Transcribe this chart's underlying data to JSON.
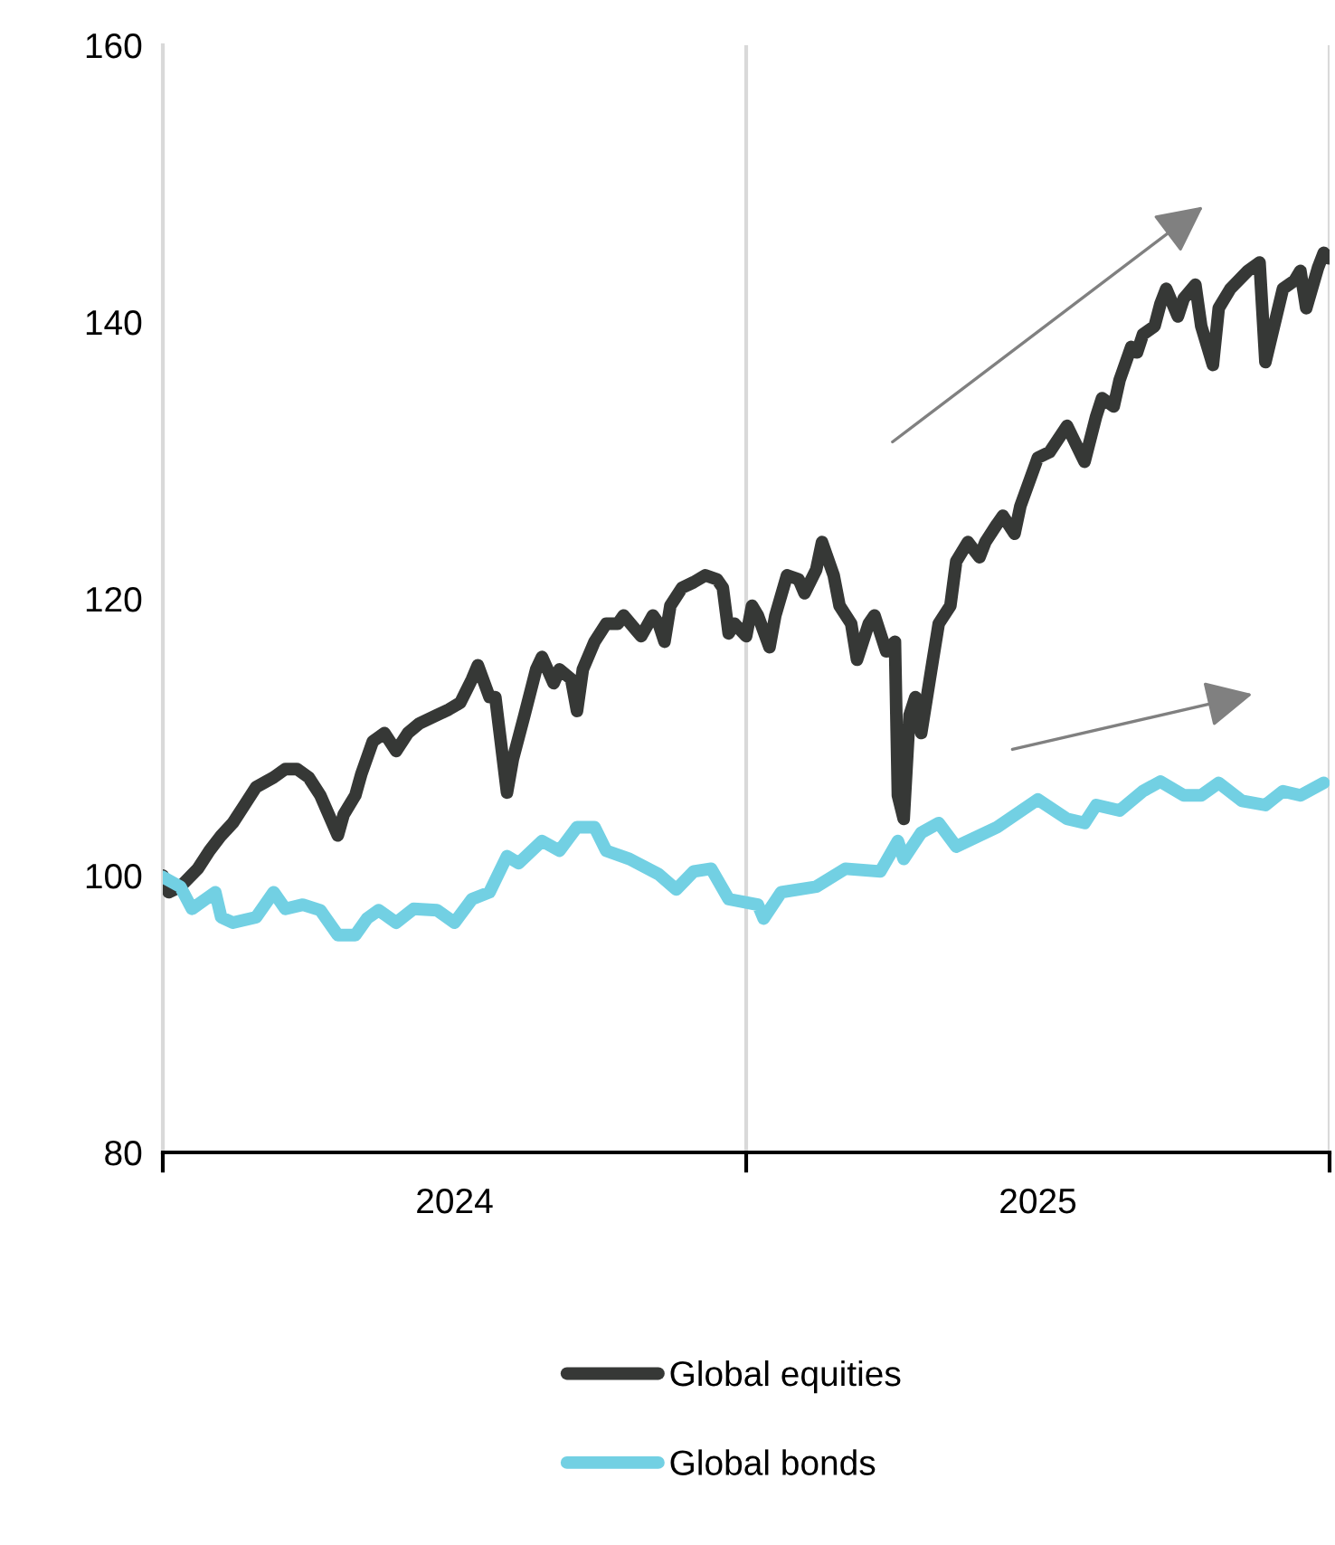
{
  "chart_data": {
    "type": "line",
    "xlim": [
      2024,
      2026
    ],
    "xticks": [
      {
        "value": 2024,
        "label": null
      },
      {
        "value": 2024.5,
        "label": "2024"
      },
      {
        "value": 2025,
        "label": null
      },
      {
        "value": 2025.5,
        "label": "2025"
      },
      {
        "value": 2026,
        "label": null
      }
    ],
    "ylim": [
      80,
      160
    ],
    "yticks": [
      80,
      100,
      120,
      140,
      160
    ],
    "grid": "x",
    "legend": "bottom",
    "marker": "none",
    "line_style": "solid",
    "series": [
      {
        "name": "Global equities",
        "color": "#363836",
        "x": [
          2024.0,
          2024.01,
          2024.03,
          2024.06,
          2024.08,
          2024.1,
          2024.12,
          2024.14,
          2024.16,
          2024.19,
          2024.21,
          2024.23,
          2024.25,
          2024.27,
          2024.3,
          2024.31,
          2024.33,
          2024.34,
          2024.36,
          2024.38,
          2024.4,
          2024.42,
          2024.44,
          2024.47,
          2024.49,
          2024.51,
          2024.53,
          2024.54,
          2024.56,
          2024.57,
          2024.59,
          2024.6,
          2024.62,
          2024.64,
          2024.65,
          2024.67,
          2024.68,
          2024.7,
          2024.71,
          2024.72,
          2024.74,
          2024.76,
          2024.78,
          2024.79,
          2024.81,
          2024.82,
          2024.84,
          2024.85,
          2024.86,
          2024.87,
          2024.89,
          2024.91,
          2024.93,
          2024.95,
          2024.96,
          2024.97,
          2024.98,
          2025.0,
          2025.01,
          2025.02,
          2025.04,
          2025.05,
          2025.07,
          2025.09,
          2025.1,
          2025.12,
          2025.13,
          2025.15,
          2025.16,
          2025.18,
          2025.19,
          2025.21,
          2025.22,
          2025.24,
          2025.255,
          2025.26,
          2025.27,
          2025.28,
          2025.29,
          2025.3,
          2025.32,
          2025.33,
          2025.35,
          2025.36,
          2025.38,
          2025.4,
          2025.41,
          2025.43,
          2025.44,
          2025.46,
          2025.47,
          2025.5,
          2025.52,
          2025.55,
          2025.58,
          2025.6,
          2025.61,
          2025.63,
          2025.64,
          2025.66,
          2025.67,
          2025.68,
          2025.7,
          2025.71,
          2025.72,
          2025.74,
          2025.75,
          2025.77,
          2025.78,
          2025.8,
          2025.81,
          2025.83,
          2025.86,
          2025.88,
          2025.89,
          2025.92,
          2025.94,
          2025.95,
          2025.96,
          2025.98,
          2025.99,
          2026.0
        ],
        "values": [
          100,
          98.8,
          99.2,
          100.5,
          101.8,
          102.9,
          103.8,
          105.1,
          106.4,
          107.1,
          107.7,
          107.7,
          107.1,
          105.8,
          102.9,
          104.4,
          105.8,
          107.3,
          109.7,
          110.3,
          109.0,
          110.3,
          111.0,
          111.6,
          112.0,
          112.5,
          114.2,
          115.2,
          112.9,
          112.9,
          106.0,
          108.4,
          111.6,
          114.9,
          115.8,
          113.9,
          114.9,
          114.2,
          111.9,
          114.9,
          116.9,
          118.2,
          118.2,
          118.8,
          117.8,
          117.3,
          118.8,
          118.2,
          116.9,
          119.5,
          120.8,
          121.2,
          121.7,
          121.4,
          120.8,
          117.5,
          118.2,
          117.3,
          119.5,
          118.8,
          116.5,
          118.8,
          121.7,
          121.4,
          120.4,
          122.1,
          124.1,
          121.7,
          119.5,
          118.2,
          115.6,
          118.2,
          118.8,
          116.2,
          116.9,
          105.8,
          104.1,
          111.6,
          112.9,
          110.3,
          115.6,
          118.2,
          119.5,
          122.7,
          124.1,
          123.0,
          124.1,
          125.4,
          126.0,
          124.7,
          126.7,
          130.2,
          130.6,
          132.5,
          129.9,
          133.2,
          134.5,
          133.9,
          135.8,
          138.2,
          137.8,
          139.1,
          139.7,
          141.3,
          142.4,
          140.4,
          141.7,
          142.7,
          139.7,
          136.9,
          141.0,
          142.4,
          143.7,
          144.3,
          137.1,
          142.4,
          143.0,
          143.7,
          141.0,
          143.9,
          145.0,
          144.6
        ]
      },
      {
        "name": "Global bonds",
        "color": "#72d0e3",
        "x": [
          2024.0,
          2024.03,
          2024.05,
          2024.09,
          2024.1,
          2024.12,
          2024.16,
          2024.19,
          2024.21,
          2024.24,
          2024.27,
          2024.3,
          2024.33,
          2024.35,
          2024.37,
          2024.4,
          2024.43,
          2024.47,
          2024.5,
          2024.53,
          2024.56,
          2024.59,
          2024.61,
          2024.65,
          2024.68,
          2024.71,
          2024.74,
          2024.76,
          2024.8,
          2024.85,
          2024.88,
          2024.91,
          2024.94,
          2024.97,
          2025.02,
          2025.03,
          2025.06,
          2025.12,
          2025.17,
          2025.23,
          2025.26,
          2025.27,
          2025.3,
          2025.33,
          2025.36,
          2025.43,
          2025.5,
          2025.55,
          2025.58,
          2025.6,
          2025.64,
          2025.68,
          2025.71,
          2025.75,
          2025.78,
          2025.81,
          2025.85,
          2025.89,
          2025.92,
          2025.95,
          2025.99
        ],
        "values": [
          99.9,
          99.2,
          97.6,
          98.8,
          97.0,
          96.6,
          97.0,
          98.8,
          97.6,
          97.9,
          97.5,
          95.7,
          95.7,
          96.9,
          97.5,
          96.6,
          97.6,
          97.5,
          96.6,
          98.3,
          98.8,
          101.4,
          100.9,
          102.5,
          101.8,
          103.5,
          103.5,
          101.8,
          101.2,
          100.1,
          99.0,
          100.3,
          100.5,
          98.3,
          97.9,
          96.9,
          98.8,
          99.2,
          100.5,
          100.3,
          102.5,
          101.2,
          103.1,
          103.8,
          102.1,
          103.5,
          105.5,
          104.1,
          103.8,
          105.1,
          104.7,
          106.1,
          106.8,
          105.8,
          105.8,
          106.7,
          105.4,
          105.1,
          106.1,
          105.8,
          106.7
        ]
      }
    ]
  }
}
